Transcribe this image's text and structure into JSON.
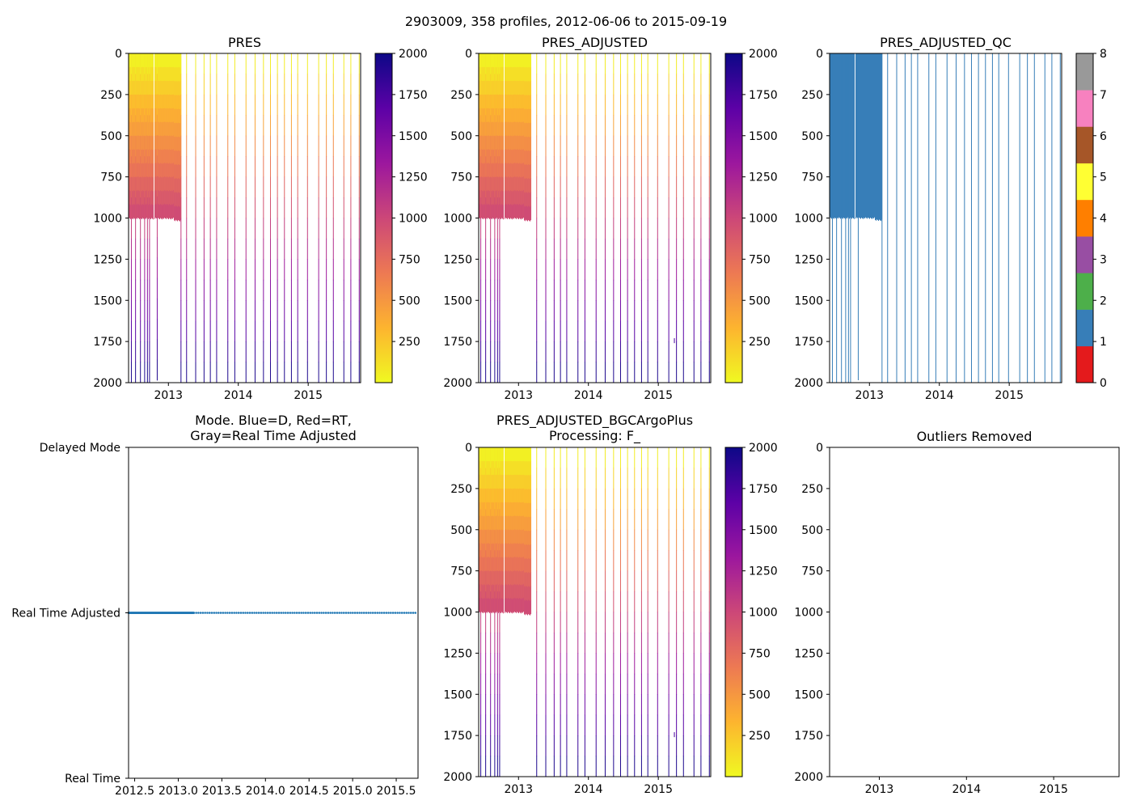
{
  "figure_title": "2903009, 358 profiles, 2012-06-06 to 2015-09-19",
  "colors": {
    "plasma_stops": [
      "#f0f921",
      "#fdb42f",
      "#ed7953",
      "#cc4778",
      "#9c179e",
      "#5c01a6",
      "#0d0887"
    ],
    "qc_blue": "#377eb8",
    "mode_blue": "#1f77b4",
    "qc_classes": [
      "#e41a1c",
      "#377eb8",
      "#4daf4a",
      "#984ea3",
      "#ff7f00",
      "#ffff33",
      "#a65628",
      "#f781bf",
      "#999999"
    ]
  },
  "chart_data": [
    {
      "id": "pres",
      "type": "heatmap",
      "title": "PRES",
      "xlim": [
        2012.43,
        2015.75
      ],
      "ylim": [
        2000,
        0
      ],
      "ylabel_ticks": [
        0,
        250,
        500,
        750,
        1000,
        1250,
        1500,
        1750,
        2000
      ],
      "xticks": [
        {
          "value": 2013.0,
          "label": "2013"
        },
        {
          "value": 2014.0,
          "label": "2014"
        },
        {
          "value": 2015.0,
          "label": "2015"
        }
      ],
      "colorbar": {
        "type": "plasma_r",
        "range": [
          0,
          2000
        ],
        "ticks": [
          250,
          500,
          750,
          1000,
          1250,
          1500,
          1750,
          2000
        ]
      },
      "dense_block": {
        "x_start": 2012.43,
        "x_end": 2013.18,
        "max_depth": 1000,
        "gap_at": 2012.79
      },
      "deep_profiles": [
        {
          "x": 2012.47,
          "depth": 2000
        },
        {
          "x": 2012.53,
          "depth": 2000
        },
        {
          "x": 2012.6,
          "depth": 2000
        },
        {
          "x": 2012.66,
          "depth": 2000
        },
        {
          "x": 2012.7,
          "depth": 2000
        },
        {
          "x": 2012.73,
          "depth": 2000
        },
        {
          "x": 2012.84,
          "depth": 1985
        },
        {
          "x": 2013.18,
          "depth": 2000
        }
      ],
      "sparse_profiles": [
        2013.26,
        2013.39,
        2013.51,
        2013.6,
        2013.69,
        2013.85,
        2013.95,
        2014.11,
        2014.24,
        2014.36,
        2014.46,
        2014.56,
        2014.66,
        2014.76,
        2014.85,
        2014.99,
        2015.15,
        2015.26,
        2015.36,
        2015.51,
        2015.61,
        2015.73
      ],
      "sparse_depth": 2000
    },
    {
      "id": "pres_adjusted",
      "type": "heatmap",
      "title": "PRES_ADJUSTED",
      "xlim": [
        2012.43,
        2015.75
      ],
      "ylim": [
        2000,
        0
      ],
      "ylabel_ticks": [
        0,
        250,
        500,
        750,
        1000,
        1250,
        1500,
        1750,
        2000
      ],
      "xticks": [
        {
          "value": 2013.0,
          "label": "2013"
        },
        {
          "value": 2014.0,
          "label": "2014"
        },
        {
          "value": 2015.0,
          "label": "2015"
        }
      ],
      "colorbar": {
        "type": "plasma_r",
        "range": [
          0,
          2000
        ],
        "ticks": [
          250,
          500,
          750,
          1000,
          1250,
          1500,
          1750,
          2000
        ]
      },
      "dense_block": {
        "x_start": 2012.43,
        "x_end": 2013.18,
        "max_depth": 1000,
        "gap_at": 2012.79
      },
      "deep_profiles": [
        {
          "x": 2012.46,
          "depth": 2000
        },
        {
          "x": 2012.53,
          "depth": 2000
        },
        {
          "x": 2012.6,
          "depth": 2000
        },
        {
          "x": 2012.66,
          "depth": 2000
        },
        {
          "x": 2012.7,
          "depth": 2000
        },
        {
          "x": 2012.73,
          "depth": 2000
        }
      ],
      "sparse_profiles": [
        2013.26,
        2013.39,
        2013.51,
        2013.6,
        2013.69,
        2013.85,
        2013.95,
        2014.11,
        2014.24,
        2014.36,
        2014.46,
        2014.56,
        2014.66,
        2014.76,
        2014.85,
        2014.99,
        2015.15,
        2015.26,
        2015.36,
        2015.51,
        2015.61,
        2015.73
      ],
      "sparse_depth": 2000,
      "special_profiles": [
        {
          "x": 2015.23,
          "depth": 1760
        }
      ]
    },
    {
      "id": "pres_adjusted_qc",
      "type": "heatmap",
      "title": "PRES_ADJUSTED_QC",
      "xlim": [
        2012.43,
        2015.75
      ],
      "ylim": [
        2000,
        0
      ],
      "ylabel_ticks": [
        0,
        250,
        500,
        750,
        1000,
        1250,
        1500,
        1750,
        2000
      ],
      "xticks": [
        {
          "value": 2013.0,
          "label": "2013"
        },
        {
          "value": 2014.0,
          "label": "2014"
        },
        {
          "value": 2015.0,
          "label": "2015"
        }
      ],
      "colorbar": {
        "type": "qc",
        "range": [
          0,
          8
        ],
        "ticks": [
          0,
          1,
          2,
          3,
          4,
          5,
          6,
          7,
          8
        ]
      },
      "qc_value": 1,
      "dense_block": {
        "x_start": 2012.43,
        "x_end": 2013.18,
        "max_depth": 1000,
        "gap_at": 2012.79
      },
      "deep_profiles": [
        {
          "x": 2012.47,
          "depth": 2000
        },
        {
          "x": 2012.53,
          "depth": 2000
        },
        {
          "x": 2012.6,
          "depth": 2000
        },
        {
          "x": 2012.66,
          "depth": 2000
        },
        {
          "x": 2012.7,
          "depth": 2000
        },
        {
          "x": 2012.73,
          "depth": 2000
        },
        {
          "x": 2012.84,
          "depth": 1985
        },
        {
          "x": 2013.18,
          "depth": 2000
        }
      ],
      "sparse_profiles": [
        2013.26,
        2013.39,
        2013.51,
        2013.6,
        2013.69,
        2013.85,
        2013.95,
        2014.11,
        2014.24,
        2014.36,
        2014.46,
        2014.56,
        2014.66,
        2014.76,
        2014.85,
        2014.99,
        2015.15,
        2015.26,
        2015.36,
        2015.51,
        2015.61,
        2015.73
      ],
      "sparse_depth": 2000
    },
    {
      "id": "mode",
      "type": "scatter",
      "title_line1": "Mode. Blue=D, Red=RT,",
      "title_line2": "Gray=Real Time Adjusted",
      "xlim": [
        2012.43,
        2015.75
      ],
      "ylim": [
        0,
        2
      ],
      "yticks": [
        {
          "value": 2,
          "label": "Delayed Mode"
        },
        {
          "value": 1,
          "label": "Real Time Adjusted"
        },
        {
          "value": 0,
          "label": "Real Time"
        }
      ],
      "xticks": [
        {
          "value": 2012.5,
          "label": "2012.5"
        },
        {
          "value": 2013.0,
          "label": "2013.0"
        },
        {
          "value": 2013.5,
          "label": "2013.5"
        },
        {
          "value": 2014.0,
          "label": "2014.0"
        },
        {
          "value": 2014.5,
          "label": "2014.5"
        },
        {
          "value": 2015.0,
          "label": "2015.0"
        },
        {
          "value": 2015.5,
          "label": "2015.5"
        }
      ],
      "points": {
        "y": 1,
        "x_start": 2012.43,
        "x_end": 2015.72,
        "dense_until": 2013.18,
        "count": 358
      }
    },
    {
      "id": "pres_bgc",
      "type": "heatmap",
      "title_line1": "PRES_ADJUSTED_BGCArgoPlus",
      "title_line2": "Processing: F_",
      "xlim": [
        2012.43,
        2015.75
      ],
      "ylim": [
        2000,
        0
      ],
      "ylabel_ticks": [
        0,
        250,
        500,
        750,
        1000,
        1250,
        1500,
        1750,
        2000
      ],
      "xticks": [
        {
          "value": 2013.0,
          "label": "2013"
        },
        {
          "value": 2014.0,
          "label": "2014"
        },
        {
          "value": 2015.0,
          "label": "2015"
        }
      ],
      "colorbar": {
        "type": "plasma_r",
        "range": [
          0,
          2000
        ],
        "ticks": [
          250,
          500,
          750,
          1000,
          1250,
          1500,
          1750,
          2000
        ]
      },
      "dense_block": {
        "x_start": 2012.43,
        "x_end": 2013.18,
        "max_depth": 1000,
        "gap_at": 2012.79
      },
      "deep_profiles": [
        {
          "x": 2012.46,
          "depth": 2000
        },
        {
          "x": 2012.53,
          "depth": 2000
        },
        {
          "x": 2012.6,
          "depth": 2000
        },
        {
          "x": 2012.66,
          "depth": 2000
        },
        {
          "x": 2012.7,
          "depth": 2000
        },
        {
          "x": 2012.73,
          "depth": 2000
        }
      ],
      "sparse_profiles": [
        2013.26,
        2013.39,
        2013.51,
        2013.6,
        2013.69,
        2013.85,
        2013.95,
        2014.11,
        2014.24,
        2014.36,
        2014.46,
        2014.56,
        2014.66,
        2014.76,
        2014.85,
        2014.99,
        2015.15,
        2015.26,
        2015.36,
        2015.51,
        2015.61,
        2015.73
      ],
      "sparse_depth": 2000,
      "special_profiles": [
        {
          "x": 2015.23,
          "depth": 1760
        }
      ]
    },
    {
      "id": "outliers",
      "type": "scatter",
      "title": "Outliers Removed",
      "xlim": [
        2012.43,
        2015.75
      ],
      "ylim": [
        2000,
        0
      ],
      "ylabel_ticks": [
        0,
        250,
        500,
        750,
        1000,
        1250,
        1500,
        1750,
        2000
      ],
      "xticks": [
        {
          "value": 2013.0,
          "label": "2013"
        },
        {
          "value": 2014.0,
          "label": "2014"
        },
        {
          "value": 2015.0,
          "label": "2015"
        }
      ],
      "points": []
    }
  ]
}
